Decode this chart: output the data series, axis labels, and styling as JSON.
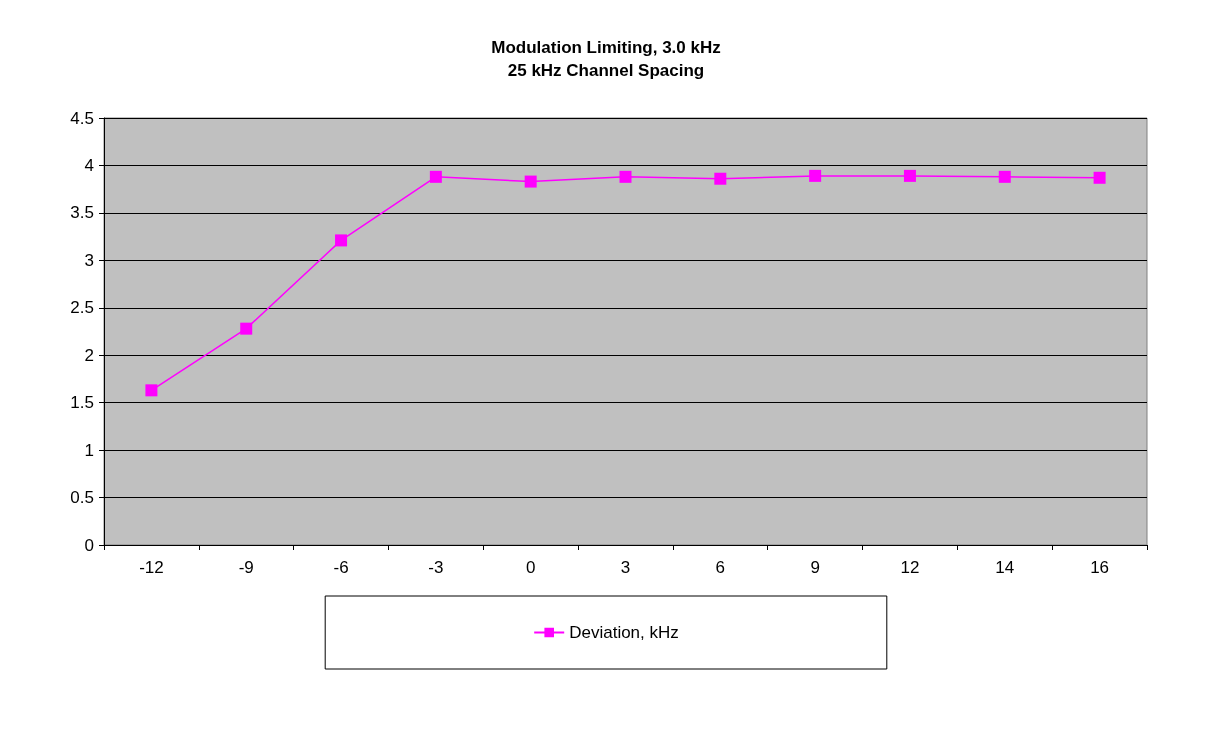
{
  "chart_data": {
    "type": "line",
    "title": "Modulation Limiting, 3.0 kHz",
    "subtitle": "25 kHz Channel Spacing",
    "categories": [
      "-12",
      "-9",
      "-6",
      "-3",
      "0",
      "3",
      "6",
      "9",
      "12",
      "14",
      "16"
    ],
    "series": [
      {
        "name": "Deviation, kHz",
        "color": "#ff00ff",
        "values": [
          1.63,
          2.28,
          3.21,
          3.88,
          3.83,
          3.88,
          3.86,
          3.89,
          3.89,
          3.88,
          3.87
        ]
      }
    ],
    "ylim": [
      0,
      4.5
    ],
    "yticks": [
      0,
      0.5,
      1,
      1.5,
      2,
      2.5,
      3,
      3.5,
      4,
      4.5
    ],
    "grid": "y",
    "legend": "bottom",
    "marker": "square",
    "line_style": "solid"
  }
}
